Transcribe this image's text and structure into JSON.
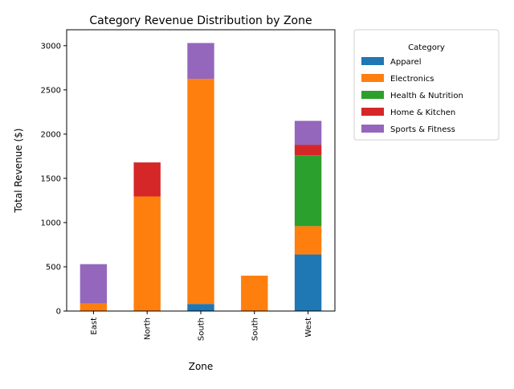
{
  "chart_data": {
    "type": "bar",
    "stacked": true,
    "title": "Category Revenue Distribution by Zone",
    "xlabel": "Zone",
    "ylabel": "Total Revenue ($)",
    "categories": [
      "East",
      "North",
      "South",
      "South",
      "West"
    ],
    "ylim": [
      0,
      3180
    ],
    "yticks": [
      0,
      500,
      1000,
      1500,
      2000,
      2500,
      3000
    ],
    "grid": false,
    "legend": {
      "title": "Category",
      "placement": "outside-right-top"
    },
    "series": [
      {
        "name": "Apparel",
        "color": "#1f77b4",
        "values": [
          0,
          0,
          80,
          0,
          640
        ]
      },
      {
        "name": "Electronics",
        "color": "#ff7f0e",
        "values": [
          85,
          1295,
          2545,
          400,
          320
        ]
      },
      {
        "name": "Health & Nutrition",
        "color": "#2ca02c",
        "values": [
          0,
          0,
          0,
          0,
          800
        ]
      },
      {
        "name": "Home & Kitchen",
        "color": "#d62728",
        "values": [
          0,
          385,
          0,
          0,
          120
        ]
      },
      {
        "name": "Sports & Fitness",
        "color": "#9467bd",
        "values": [
          445,
          0,
          405,
          0,
          270
        ]
      }
    ]
  }
}
